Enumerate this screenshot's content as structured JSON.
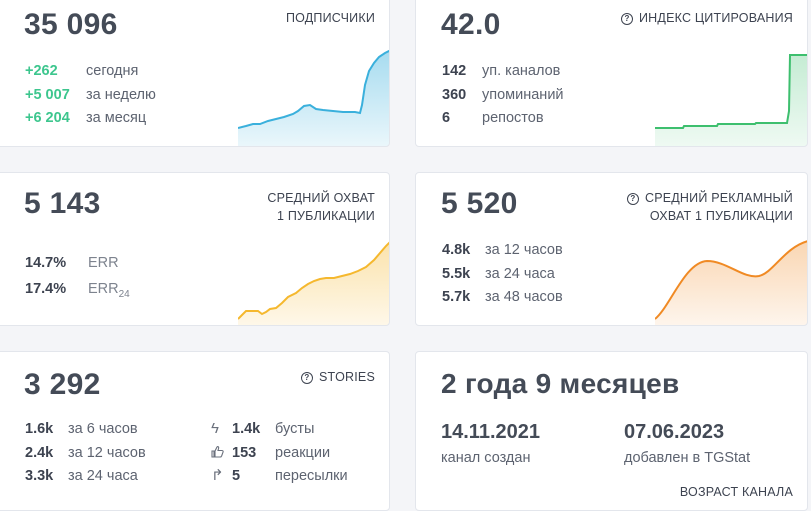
{
  "subscribers": {
    "value": "35 096",
    "title": "ПОДПИСЧИКИ",
    "stats": [
      {
        "value": "+262",
        "label": "сегодня"
      },
      {
        "value": "+5 007",
        "label": "за неделю"
      },
      {
        "value": "+6 204",
        "label": "за месяц"
      }
    ],
    "color": "#3ab0dc"
  },
  "citation": {
    "value": "42.0",
    "title": "ИНДЕКС ЦИТИРОВАНИЯ",
    "stats": [
      {
        "value": "142",
        "label": "уп. каналов"
      },
      {
        "value": "360",
        "label": "упоминаний"
      },
      {
        "value": "6",
        "label": "репостов"
      }
    ],
    "color": "#3dbf6e"
  },
  "reach": {
    "value": "5 143",
    "title_line1": "СРЕДНИЙ ОХВАТ",
    "title_line2": "1 ПУБЛИКАЦИИ",
    "stats": [
      {
        "value": "14.7%",
        "label": "ERR",
        "sub": ""
      },
      {
        "value": "17.4%",
        "label": "ERR",
        "sub": "24"
      }
    ],
    "color": "#f5b82e"
  },
  "ad_reach": {
    "value": "5 520",
    "title_line1": "СРЕДНИЙ РЕКЛАМНЫЙ",
    "title_line2": "ОХВАТ 1 ПУБЛИКАЦИИ",
    "stats": [
      {
        "value": "4.8k",
        "label": "за 12 часов"
      },
      {
        "value": "5.5k",
        "label": "за 24 часа"
      },
      {
        "value": "5.7k",
        "label": "за 48 часов"
      }
    ],
    "color": "#f08a24"
  },
  "stories": {
    "value": "3 292",
    "title": "STORIES",
    "views": [
      {
        "value": "1.6k",
        "label": "за 6 часов"
      },
      {
        "value": "2.4k",
        "label": "за 12 часов"
      },
      {
        "value": "3.3k",
        "label": "за 24 часа"
      }
    ],
    "actions": [
      {
        "icon": "lightning-icon",
        "glyph": "ϟ",
        "value": "1.4k",
        "label": "бусты"
      },
      {
        "icon": "thumbs-up-icon",
        "glyph": "👍",
        "value": "153",
        "label": "реакции"
      },
      {
        "icon": "share-arrow-icon",
        "glyph": "↱",
        "value": "5",
        "label": "пересылки"
      }
    ]
  },
  "age": {
    "value": "2 года 9 месяцев",
    "created_date": "14.11.2021",
    "created_label": "канал создан",
    "added_date": "07.06.2023",
    "added_label": "добавлен в TGStat",
    "title": "ВОЗРАСТ КАНАЛА"
  }
}
